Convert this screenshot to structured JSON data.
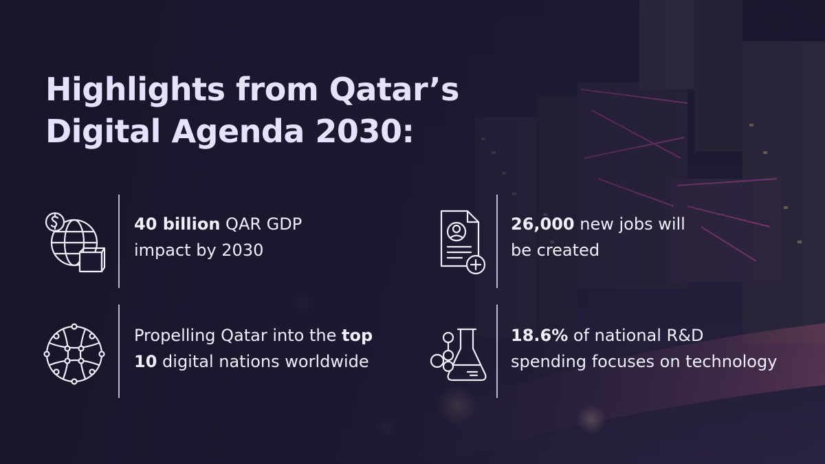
{
  "title": {
    "line1": "Highlights from Qatar’s",
    "line2": "Digital Agenda 2030:"
  },
  "highlights": [
    {
      "icon": "globe-money-package-icon",
      "line1_bold": "40 billion",
      "line1_rest": " QAR GDP",
      "line2_bold": "",
      "line2_rest": "impact by 2030"
    },
    {
      "icon": "document-profile-add-icon",
      "line1_bold": "26,000",
      "line1_rest": " new jobs will",
      "line2_bold": "",
      "line2_rest": "be created"
    },
    {
      "icon": "network-globe-icon",
      "line1_bold": "",
      "line1_rest": "Propelling Qatar into the ",
      "line1_bold_end": "top",
      "line2_bold": "10",
      "line2_rest": " digital nations worldwide"
    },
    {
      "icon": "flask-molecules-icon",
      "line1_bold": "18.6%",
      "line1_rest": " of national R&D",
      "line2_bold": "",
      "line2_rest": "spending focuses on technology"
    }
  ],
  "colors": {
    "title": "#e4e2ff",
    "text": "#eef0fa",
    "background": "#1b1830",
    "accent": "#c44a9a"
  }
}
